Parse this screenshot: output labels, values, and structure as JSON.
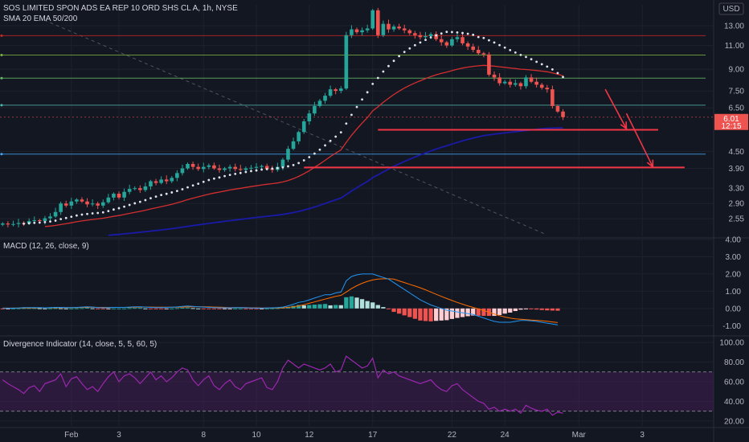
{
  "header": {
    "title": "SOS LIMITED SPON ADS EA REP 10 ORD SHS CL A, 1h, NYSE",
    "overlay_label": "SMA 20 EMA 50/200",
    "currency": "USD"
  },
  "colors": {
    "background": "#131722",
    "grid": "#1e222d",
    "up": "#26a69a",
    "down": "#ef5350",
    "sma20": "#e0e3eb",
    "ema50": "#d32f2f",
    "ema200": "#1a1aa8",
    "macd_line": "#2196f3",
    "signal_line": "#ff6d00",
    "rsi_line": "#9c27b0",
    "rsi_band": "#4a1f5c"
  },
  "price_tag": {
    "value": "6.01",
    "time": "12:15"
  },
  "chart_data": [
    {
      "type": "candlestick",
      "title": "SOS LIMITED SPON ADS EA REP 10 ORD SHS CL A, 1h, NYSE",
      "ylabel": "USD",
      "y_scale": "log",
      "ylim": [
        2.2,
        15.5
      ],
      "y_ticks": [
        "13.00",
        "11.00",
        "9.00",
        "7.50",
        "6.50",
        "4.50",
        "3.90",
        "3.30",
        "2.90",
        "2.55"
      ],
      "x_ticks": [
        "Feb",
        "3",
        "8",
        "10",
        "12",
        "17",
        "22",
        "24",
        "Mar",
        "3"
      ],
      "x_tick_index": [
        13,
        22,
        38,
        48,
        58,
        70,
        85,
        95,
        109,
        121
      ],
      "bars_total": 135,
      "closes": [
        2.45,
        2.43,
        2.44,
        2.46,
        2.45,
        2.5,
        2.52,
        2.5,
        2.56,
        2.6,
        2.7,
        2.9,
        2.85,
        2.95,
        3.0,
        2.95,
        2.88,
        2.9,
        2.85,
        2.93,
        3.05,
        3.15,
        3.05,
        3.2,
        3.28,
        3.3,
        3.25,
        3.35,
        3.5,
        3.45,
        3.55,
        3.5,
        3.6,
        3.75,
        3.9,
        4.05,
        3.95,
        3.88,
        3.95,
        4.0,
        3.9,
        3.85,
        3.9,
        3.95,
        3.88,
        3.85,
        3.9,
        3.92,
        3.95,
        3.98,
        3.88,
        3.85,
        3.95,
        4.2,
        4.6,
        4.9,
        5.3,
        5.8,
        6.2,
        6.6,
        6.9,
        7.2,
        7.6,
        7.5,
        7.65,
        12.0,
        12.6,
        12.3,
        12.5,
        12.7,
        14.8,
        12.0,
        13.2,
        12.6,
        12.9,
        12.7,
        12.5,
        12.2,
        12.0,
        11.8,
        11.9,
        12.1,
        11.6,
        11.3,
        11.0,
        11.6,
        11.8,
        11.2,
        10.9,
        10.6,
        10.3,
        10.2,
        8.6,
        8.4,
        8.0,
        8.1,
        7.9,
        8.0,
        7.8,
        8.4,
        8.1,
        7.9,
        7.7,
        7.6,
        6.6,
        6.3,
        6.01
      ],
      "series": [
        {
          "name": "SMA 20",
          "style": "dots"
        },
        {
          "name": "EMA 50"
        },
        {
          "name": "EMA 200"
        }
      ],
      "horizontal_levels": [
        {
          "price": 11.95,
          "color": "#c62828"
        },
        {
          "price": 10.15,
          "color": "#7cb342"
        },
        {
          "price": 8.35,
          "color": "#66bb6a"
        },
        {
          "price": 6.65,
          "color": "#4db6ac"
        },
        {
          "price": 4.4,
          "color": "#42a5f5"
        }
      ],
      "support_lines": [
        {
          "price": 5.4,
          "from_index": 71,
          "to_index": 124
        },
        {
          "price": 3.93,
          "from_index": 57,
          "to_index": 129
        }
      ],
      "forecast_arrows": [
        {
          "from_index": 114,
          "from_price": 7.6,
          "to_index": 118,
          "to_price": 5.45
        },
        {
          "from_index": 118,
          "from_price": 6.2,
          "to_index": 123,
          "to_price": 3.95
        }
      ]
    },
    {
      "type": "bar",
      "title": "MACD (12, 26, close, 9)",
      "ylim": [
        -1.5,
        4.0
      ],
      "y_ticks": [
        "4.00",
        "3.00",
        "2.00",
        "1.00",
        "0.00",
        "-1.00"
      ],
      "y_tick_values": [
        4,
        3,
        2,
        1,
        0,
        -1
      ],
      "series": [
        {
          "name": "MACD",
          "values": [
            0.0,
            0.01,
            0.02,
            0.03,
            0.05,
            0.05,
            0.05,
            0.05,
            0.04,
            0.05,
            0.06,
            0.06,
            0.05,
            0.05,
            0.06,
            0.08,
            0.1,
            0.08,
            0.05,
            0.04,
            0.05,
            0.06,
            0.06,
            0.06,
            0.08,
            0.1,
            0.1,
            0.08,
            0.06,
            0.05,
            0.05,
            0.06,
            0.07,
            0.09,
            0.12,
            0.14,
            0.12,
            0.1,
            0.08,
            0.06,
            0.05,
            0.04,
            0.04,
            0.04,
            0.05,
            0.05,
            0.04,
            0.03,
            0.02,
            0.02,
            0.03,
            0.04,
            0.05,
            0.08,
            0.15,
            0.25,
            0.35,
            0.4,
            0.5,
            0.6,
            0.7,
            0.8,
            0.8,
            0.9,
            0.95,
            1.6,
            1.85,
            1.95,
            2.0,
            2.0,
            2.0,
            1.9,
            1.8,
            1.7,
            1.5,
            1.3,
            1.1,
            0.9,
            0.7,
            0.5,
            0.35,
            0.2,
            0.1,
            0.0,
            -0.1,
            -0.15,
            -0.2,
            -0.25,
            -0.3,
            -0.35,
            -0.45,
            -0.55,
            -0.65,
            -0.75,
            -0.8,
            -0.8,
            -0.8,
            -0.75,
            -0.7,
            -0.7,
            -0.72,
            -0.75,
            -0.8,
            -0.85,
            -0.9,
            -0.95
          ]
        },
        {
          "name": "Signal",
          "values": [
            0.02,
            0.02,
            0.02,
            0.02,
            0.03,
            0.03,
            0.03,
            0.04,
            0.04,
            0.04,
            0.04,
            0.05,
            0.05,
            0.05,
            0.05,
            0.06,
            0.06,
            0.07,
            0.06,
            0.06,
            0.06,
            0.06,
            0.06,
            0.06,
            0.06,
            0.07,
            0.07,
            0.08,
            0.08,
            0.07,
            0.07,
            0.07,
            0.07,
            0.07,
            0.08,
            0.09,
            0.1,
            0.1,
            0.1,
            0.09,
            0.08,
            0.07,
            0.06,
            0.05,
            0.05,
            0.05,
            0.05,
            0.04,
            0.04,
            0.03,
            0.03,
            0.03,
            0.03,
            0.04,
            0.06,
            0.1,
            0.15,
            0.22,
            0.3,
            0.38,
            0.46,
            0.54,
            0.62,
            0.7,
            0.76,
            0.95,
            1.15,
            1.32,
            1.46,
            1.57,
            1.65,
            1.7,
            1.72,
            1.72,
            1.7,
            1.6,
            1.5,
            1.4,
            1.3,
            1.2,
            1.08,
            0.95,
            0.82,
            0.7,
            0.58,
            0.46,
            0.35,
            0.25,
            0.15,
            0.06,
            -0.03,
            -0.12,
            -0.22,
            -0.32,
            -0.42,
            -0.5,
            -0.56,
            -0.6,
            -0.63,
            -0.65,
            -0.67,
            -0.69,
            -0.71,
            -0.74,
            -0.78,
            -0.82
          ]
        }
      ]
    },
    {
      "type": "line",
      "title": "Divergence Indicator (14, close, 5, 5, 60, 5)",
      "ylim": [
        15,
        105
      ],
      "y_ticks": [
        "100.00",
        "80.00",
        "60.00",
        "40.00",
        "20.00"
      ],
      "y_tick_values": [
        100,
        80,
        60,
        40,
        20
      ],
      "bands": [
        30,
        70
      ],
      "series": [
        {
          "name": "RSI",
          "values": [
            62,
            58,
            55,
            52,
            48,
            54,
            56,
            50,
            58,
            60,
            62,
            68,
            55,
            63,
            65,
            58,
            52,
            55,
            50,
            58,
            65,
            70,
            60,
            66,
            68,
            64,
            58,
            64,
            70,
            62,
            66,
            60,
            64,
            70,
            74,
            72,
            62,
            56,
            62,
            66,
            56,
            52,
            58,
            62,
            55,
            52,
            58,
            60,
            62,
            64,
            54,
            52,
            60,
            74,
            82,
            78,
            74,
            78,
            76,
            74,
            72,
            74,
            78,
            70,
            72,
            86,
            82,
            78,
            74,
            76,
            84,
            64,
            72,
            68,
            70,
            66,
            64,
            62,
            60,
            58,
            60,
            62,
            56,
            52,
            50,
            56,
            58,
            52,
            48,
            44,
            40,
            38,
            32,
            34,
            30,
            32,
            30,
            32,
            28,
            36,
            33,
            31,
            30,
            32,
            26,
            29,
            28
          ]
        }
      ]
    }
  ]
}
